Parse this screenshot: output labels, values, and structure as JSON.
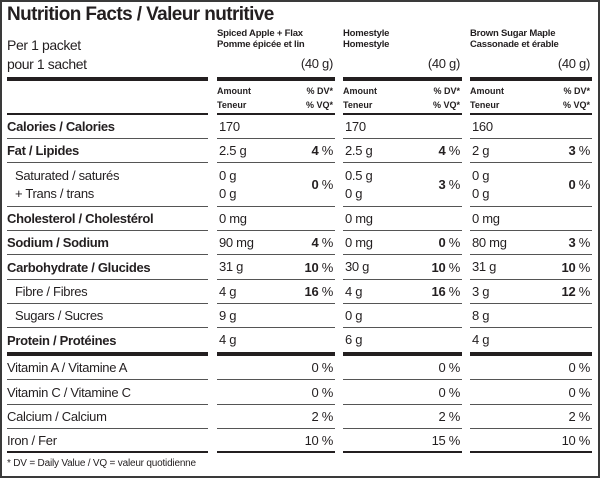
{
  "title": "Nutrition Facts / Valeur nutritive",
  "serving": {
    "line1": "Per 1 packet",
    "line2": "pour 1 sachet"
  },
  "products": [
    {
      "name_en": "Spiced Apple + Flax",
      "name_fr": "Pomme épicée et lin",
      "size": "(40 g)"
    },
    {
      "name_en": "Homestyle",
      "name_fr": "Homestyle",
      "size": "(40 g)"
    },
    {
      "name_en": "Brown Sugar Maple",
      "name_fr": "Cassonade et érable",
      "size": "(40 g)"
    }
  ],
  "column_header": {
    "amount": "Amount",
    "teneur": "Teneur",
    "dv": "% DV*",
    "vq": "% VQ*"
  },
  "nutrients": [
    {
      "label": "Calories / Calories",
      "bold": true,
      "values": [
        {
          "amount": "170",
          "dv": ""
        },
        {
          "amount": "170",
          "dv": ""
        },
        {
          "amount": "160",
          "dv": ""
        }
      ]
    },
    {
      "label": "Fat / Lipides",
      "bold": true,
      "values": [
        {
          "amount": "2.5 g",
          "dv": "4"
        },
        {
          "amount": "2.5 g",
          "dv": "4"
        },
        {
          "amount": "2 g",
          "dv": "3"
        }
      ]
    },
    {
      "label": "Saturated / saturés",
      "label2": "+ Trans / trans",
      "indent": true,
      "values": [
        {
          "amount": "0 g",
          "amount2": "0 g",
          "dv": "0"
        },
        {
          "amount": "0.5 g",
          "amount2": "0 g",
          "dv": "3"
        },
        {
          "amount": "0 g",
          "amount2": "0 g",
          "dv": "0"
        }
      ]
    },
    {
      "label": "Cholesterol / Cholestérol",
      "bold": true,
      "values": [
        {
          "amount": "0 mg",
          "dv": ""
        },
        {
          "amount": "0 mg",
          "dv": ""
        },
        {
          "amount": "0 mg",
          "dv": ""
        }
      ]
    },
    {
      "label": "Sodium / Sodium",
      "bold": true,
      "values": [
        {
          "amount": "90 mg",
          "dv": "4"
        },
        {
          "amount": "0 mg",
          "dv": "0"
        },
        {
          "amount": "80 mg",
          "dv": "3"
        }
      ]
    },
    {
      "label": "Carbohydrate / Glucides",
      "bold": true,
      "values": [
        {
          "amount": "31 g",
          "dv": "10"
        },
        {
          "amount": "30 g",
          "dv": "10"
        },
        {
          "amount": "31 g",
          "dv": "10"
        }
      ]
    },
    {
      "label": "Fibre / Fibres",
      "indent": true,
      "values": [
        {
          "amount": "4 g",
          "dv": "16"
        },
        {
          "amount": "4 g",
          "dv": "16"
        },
        {
          "amount": "3 g",
          "dv": "12"
        }
      ]
    },
    {
      "label": "Sugars / Sucres",
      "indent": true,
      "values": [
        {
          "amount": "9 g",
          "dv": ""
        },
        {
          "amount": "0 g",
          "dv": ""
        },
        {
          "amount": "8 g",
          "dv": ""
        }
      ]
    },
    {
      "label": "Protein / Protéines",
      "bold": true,
      "values": [
        {
          "amount": "4 g",
          "dv": ""
        },
        {
          "amount": "6 g",
          "dv": ""
        },
        {
          "amount": "4 g",
          "dv": ""
        }
      ]
    }
  ],
  "vitamins": [
    {
      "label": "Vitamin A / Vitamine A",
      "values": [
        "0 %",
        "0 %",
        "0 %"
      ]
    },
    {
      "label": "Vitamin C / Vitamine C",
      "values": [
        "0 %",
        "0 %",
        "0 %"
      ]
    },
    {
      "label": "Calcium / Calcium",
      "values": [
        "2 %",
        "2 %",
        "2 %"
      ]
    },
    {
      "label": "Iron / Fer",
      "values": [
        "10 %",
        "15 %",
        "10 %"
      ]
    }
  ],
  "percent_sign": " %",
  "footnote": "* DV = Daily Value / VQ = valeur quotidienne"
}
